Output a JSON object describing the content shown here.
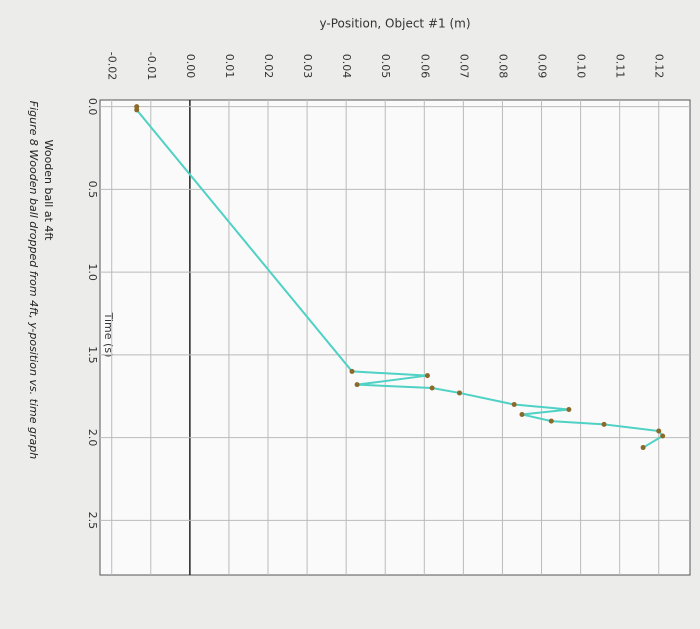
{
  "chart_data": {
    "type": "line",
    "title": "y-Position, Object #1 (m)",
    "x_label": "Time (s)",
    "captions": [
      "Wooden ball at 4ft",
      "Figure 8 Wooden ball dropped from 4ft, y-position vs. time graph"
    ],
    "x": [
      0.0,
      0.02,
      1.6,
      1.625,
      1.68,
      1.7,
      1.73,
      1.8,
      1.83,
      1.86,
      1.9,
      1.92,
      1.96,
      1.99,
      2.06
    ],
    "series": [
      {
        "name": "y-Position",
        "color": "#4fd1c5",
        "values": [
          -0.0136,
          -0.0136,
          0.0415,
          0.0608,
          0.0428,
          0.062,
          0.069,
          0.083,
          0.097,
          0.085,
          0.0925,
          0.106,
          0.12,
          0.121,
          0.116
        ]
      }
    ],
    "marker_color": "#8a6a2a",
    "xlim": [
      -0.04,
      2.83
    ],
    "ylim": [
      -0.023,
      0.128
    ],
    "xticks": [
      {
        "value": 0,
        "label": "0.0"
      },
      0.5,
      {
        "value": 1,
        "label": "1.0"
      },
      1.5,
      {
        "value": 2,
        "label": "2.0"
      },
      2.5
    ],
    "yticks": [
      -0.02,
      -0.01,
      {
        "value": 0,
        "label": "0.00"
      },
      0.01,
      0.02,
      0.03,
      0.04,
      0.05,
      0.06,
      0.07,
      0.08,
      0.09,
      {
        "value": 0.1,
        "label": "0.10"
      },
      0.11,
      0.12
    ],
    "grid": true
  }
}
